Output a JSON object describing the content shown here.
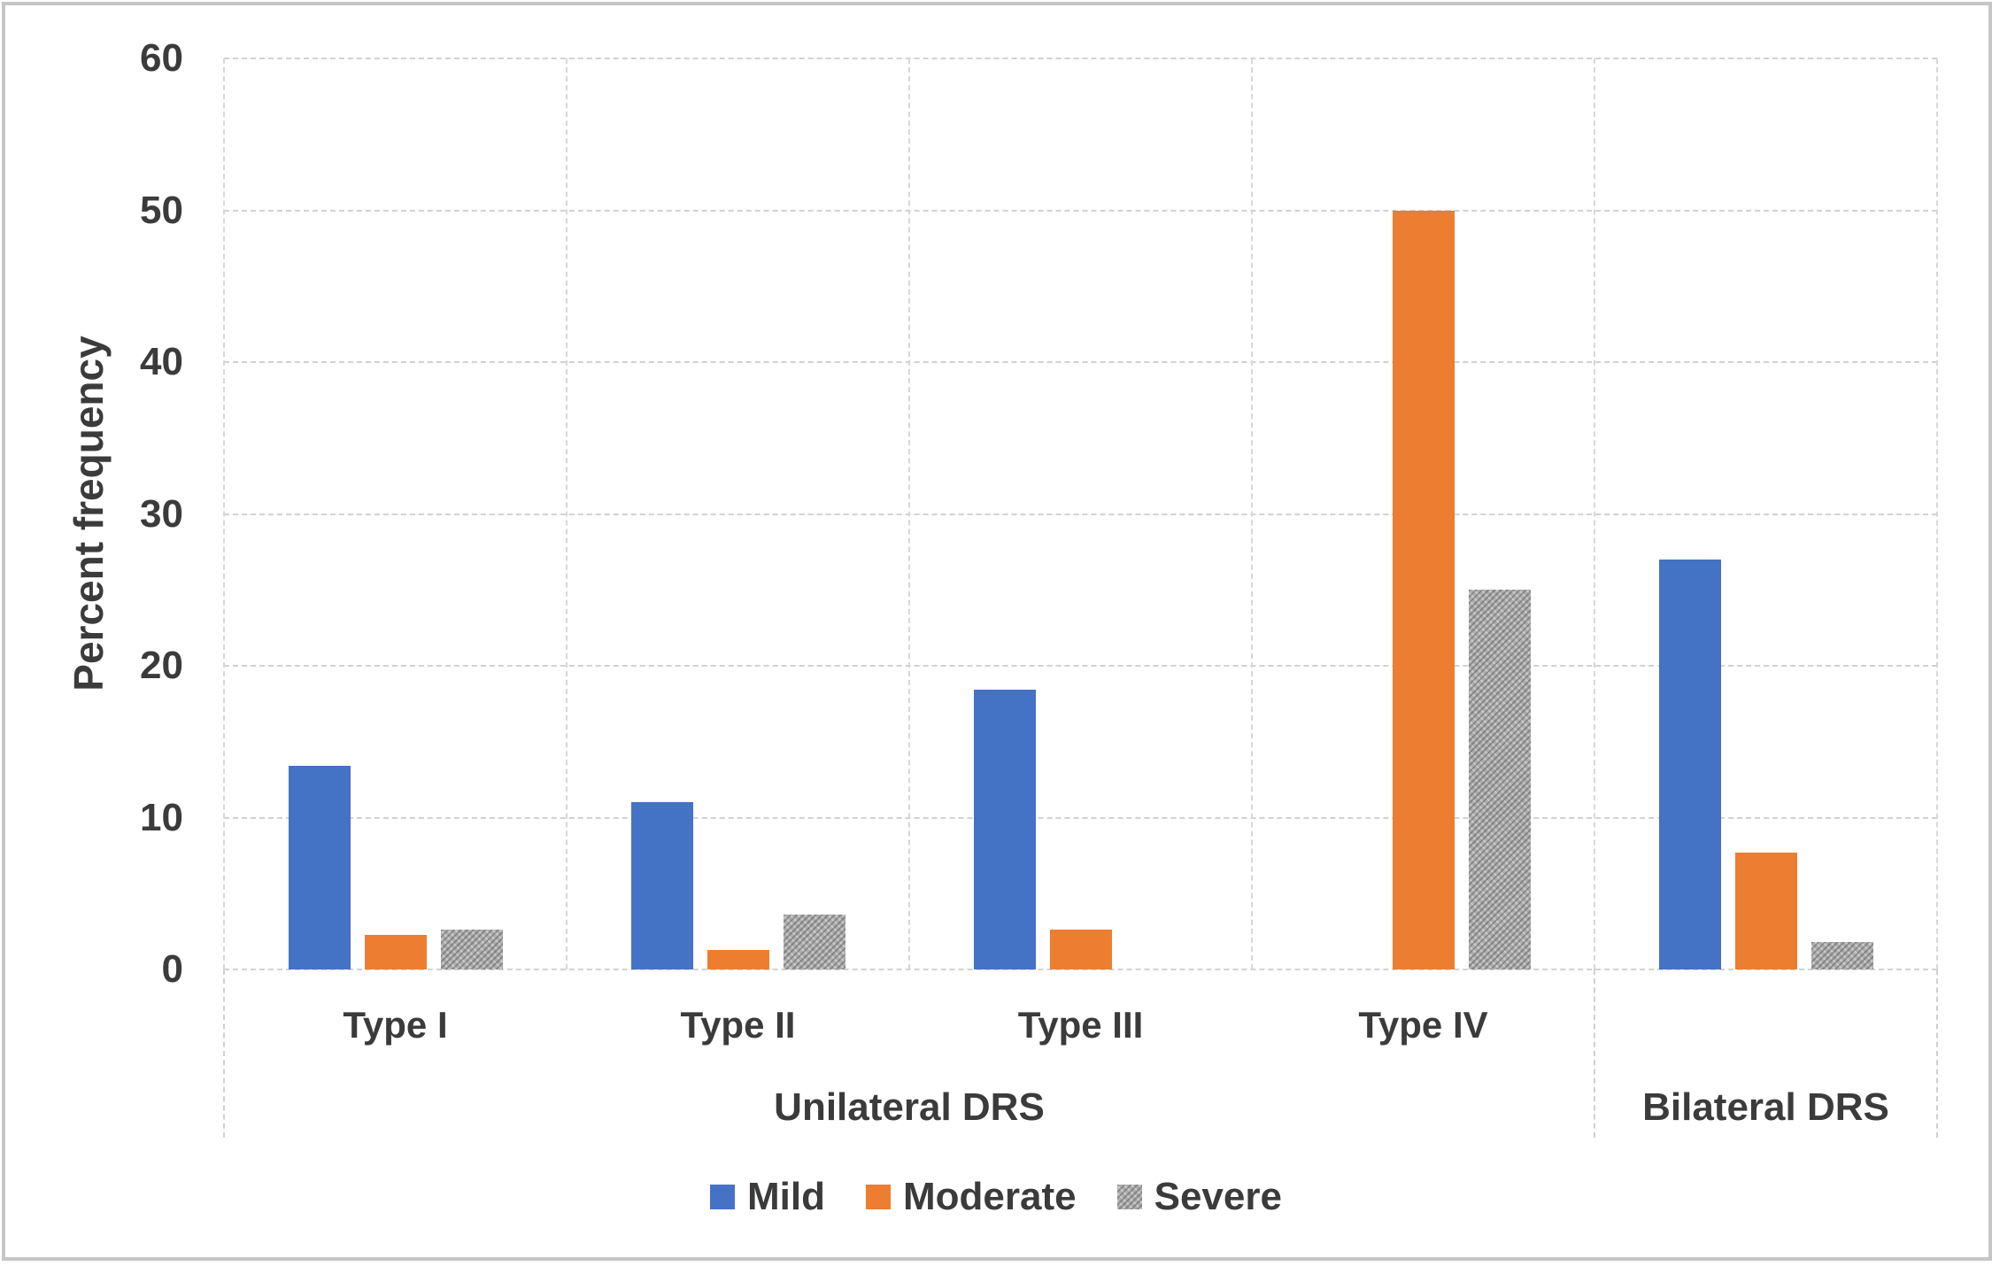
{
  "chart_data": {
    "type": "bar",
    "title": "",
    "ylabel": "Percent frequency",
    "xlabel": "",
    "ylim": [
      0,
      60
    ],
    "yticks": [
      0,
      10,
      20,
      30,
      40,
      50,
      60
    ],
    "grid": true,
    "legend_position": "bottom",
    "categories": [
      "Type I",
      "Type II",
      "Type III",
      "Type IV",
      ""
    ],
    "category_groups": [
      {
        "label": "Unilateral DRS",
        "start": 0,
        "end": 3
      },
      {
        "label": "Bilateral DRS",
        "start": 4,
        "end": 4
      }
    ],
    "series": [
      {
        "name": "Mild",
        "color": "#4472C4",
        "fill": "solid",
        "values": [
          13.4,
          11.0,
          18.4,
          0,
          27.0
        ]
      },
      {
        "name": "Moderate",
        "color": "#ED7D31",
        "fill": "solid",
        "values": [
          2.3,
          1.3,
          2.6,
          50,
          7.7
        ]
      },
      {
        "name": "Severe",
        "color": "#A6A6A6",
        "fill": "stipple",
        "values": [
          2.6,
          3.6,
          0,
          25,
          1.8
        ]
      }
    ],
    "colors": {
      "axis_text": "#3B3B3B",
      "gridline": "#D2D2D2",
      "frame_border": "#C6C6C6",
      "background": "#FFFFFF"
    }
  }
}
